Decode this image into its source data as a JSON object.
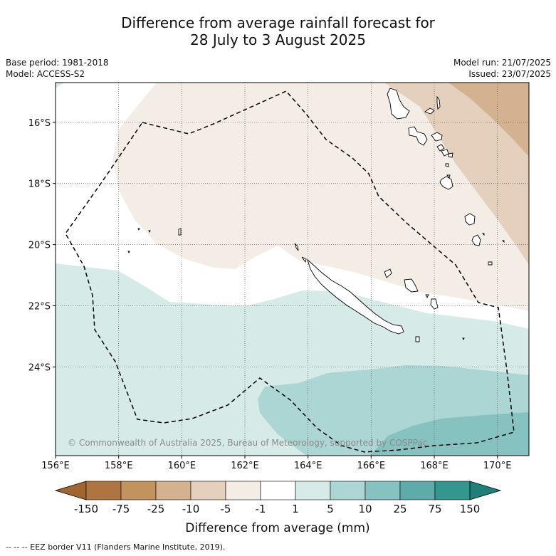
{
  "title": {
    "line1": "Difference from average rainfall forecast for",
    "line2": "28 July to 3 August 2025"
  },
  "meta": {
    "base_period": "Base period: 1981-2018",
    "model": "Model: ACCESS-S2",
    "model_run": "Model run: 21/07/2025",
    "issued": "Issued: 23/07/2025"
  },
  "map": {
    "lon_range": [
      156,
      171
    ],
    "lat_range": [
      -14.7,
      -26.9
    ],
    "lon_ticks": [
      "156°E",
      "158°E",
      "160°E",
      "162°E",
      "164°E",
      "166°E",
      "168°E",
      "170°E"
    ],
    "lat_ticks": [
      "16°S",
      "18°S",
      "20°S",
      "22°S",
      "24°S"
    ],
    "copyright": "© Commonwealth of Australia 2025, Bureau of Meteorology, supported by COSPPac"
  },
  "colorbar": {
    "title": "Difference from average (mm)",
    "tick_labels": [
      "-150",
      "-75",
      "-25",
      "-10",
      "-5",
      "-1",
      "1",
      "5",
      "10",
      "25",
      "75",
      "150"
    ],
    "colors": [
      "#ae7540",
      "#c3935f",
      "#d4b290",
      "#e4d0bd",
      "#f4ede6",
      "#ffffff",
      "#d6eae8",
      "#acd6d4",
      "#86c2c0",
      "#5dacaa",
      "#34978f"
    ],
    "extend_low_color": "#a0662d",
    "extend_high_color": "#1e8078"
  },
  "footnote": "--  --  -- EEZ border V11 (Flanders Marine Institute, 2019)."
}
